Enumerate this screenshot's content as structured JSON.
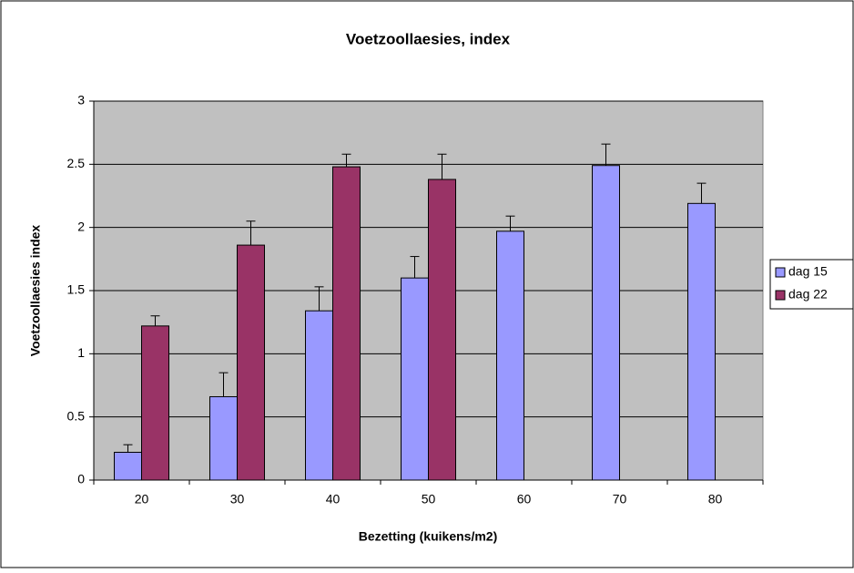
{
  "chart_data": {
    "type": "bar",
    "title": "Voetzoollaesies, index",
    "x_label": "Bezetting (kuikens/m2)",
    "y_label": "Voetzoollaesies index",
    "categories": [
      "20",
      "30",
      "40",
      "50",
      "60",
      "70",
      "80"
    ],
    "series": [
      {
        "name": "dag 15",
        "color": "#9999ff",
        "values": [
          0.22,
          0.66,
          1.34,
          1.6,
          1.97,
          2.49,
          2.19
        ],
        "errors": [
          0.06,
          0.19,
          0.19,
          0.17,
          0.12,
          0.17,
          0.16
        ]
      },
      {
        "name": "dag 22",
        "color": "#993366",
        "values": [
          1.22,
          1.86,
          2.48,
          2.38,
          null,
          null,
          null
        ],
        "errors": [
          0.08,
          0.19,
          0.1,
          0.2,
          null,
          null,
          null
        ]
      }
    ],
    "ylim": [
      0,
      3
    ],
    "yticks": [
      0,
      0.5,
      1,
      1.5,
      2,
      2.5,
      3
    ],
    "grid": true,
    "legend": "right"
  }
}
